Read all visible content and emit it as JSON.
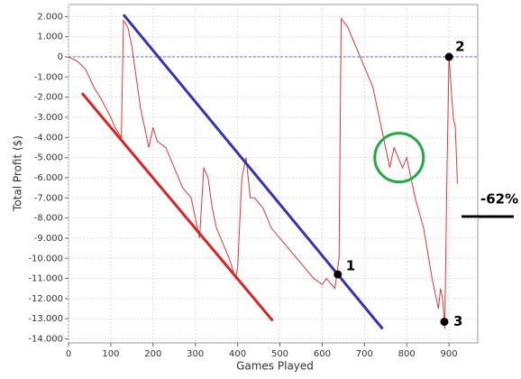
{
  "chart_data": {
    "type": "line",
    "x_label": "Games Played",
    "y_label": "Total Profit ($)",
    "xlim": [
      0,
      968
    ],
    "ylim": [
      -14200,
      2600
    ],
    "xticks": [
      0,
      100,
      200,
      300,
      400,
      500,
      600,
      700,
      800,
      900
    ],
    "yticks": [
      {
        "value": 2000,
        "label": "2.000"
      },
      {
        "value": 1000,
        "label": "1.000"
      },
      0,
      {
        "value": -1000,
        "label": "-1.000"
      },
      {
        "value": -2000,
        "label": "-2.000"
      },
      {
        "value": -3000,
        "label": "-3.000"
      },
      {
        "value": -4000,
        "label": "-4.000"
      },
      {
        "value": -5000,
        "label": "-5.000"
      },
      {
        "value": -6000,
        "label": "-6.000"
      },
      {
        "value": -7000,
        "label": "-7.000"
      },
      {
        "value": -8000,
        "label": "-8.000"
      },
      {
        "value": -9000,
        "label": "-9.000"
      },
      {
        "value": -10000,
        "label": "-10.000"
      },
      {
        "value": -11000,
        "label": "-11.000"
      },
      {
        "value": -12000,
        "label": "-12.000"
      },
      {
        "value": -13000,
        "label": "-13.000"
      },
      {
        "value": -14000,
        "label": "-14.000"
      }
    ],
    "grid": true,
    "reference_line": 0,
    "x": [
      0,
      20,
      40,
      60,
      80,
      100,
      110,
      125,
      130,
      140,
      150,
      160,
      170,
      180,
      190,
      200,
      210,
      230,
      250,
      270,
      290,
      300,
      310,
      320,
      330,
      340,
      350,
      360,
      380,
      395,
      400,
      410,
      420,
      430,
      440,
      460,
      480,
      500,
      520,
      540,
      560,
      580,
      600,
      610,
      630,
      640,
      645,
      660,
      680,
      700,
      720,
      730,
      740,
      750,
      760,
      770,
      780,
      790,
      800,
      810,
      820,
      840,
      860,
      875,
      880,
      885,
      890,
      895,
      900,
      905,
      910,
      915,
      920
    ],
    "series": [
      {
        "color": "#ee3333",
        "values": [
          0,
          -200,
          -600,
          -1500,
          -2200,
          -3000,
          -3500,
          -4000,
          1800,
          1500,
          500,
          -1000,
          -2500,
          -3500,
          -4500,
          -3500,
          -4200,
          -4500,
          -5500,
          -6500,
          -7000,
          -8000,
          -9000,
          -5500,
          -6000,
          -7500,
          -8500,
          -9000,
          -10000,
          -11000,
          -10500,
          -6000,
          -5000,
          -7000,
          -7000,
          -7500,
          -8500,
          -9000,
          -9500,
          -10000,
          -10500,
          -11000,
          -11300,
          -11000,
          -11500,
          -10000,
          1900,
          1500,
          500,
          -500,
          -1500,
          -2500,
          -3500,
          -4500,
          -5500,
          -4500,
          -5000,
          -5500,
          -5000,
          -6000,
          -7000,
          -8500,
          -11000,
          -12500,
          -11500,
          -12000,
          -13500,
          -6000,
          0,
          -1500,
          -3000,
          -3500,
          -6300
        ]
      }
    ],
    "lines": [
      {
        "color": "#3333bb",
        "x": [
          130,
          743
        ],
        "y": [
          2100,
          -13500
        ]
      },
      {
        "color": "#dd2222",
        "x": [
          32,
          483
        ],
        "y": [
          -1800,
          -13100
        ]
      }
    ],
    "circle": {
      "color": "#22aa44",
      "x": 782,
      "y": -5000
    },
    "points": [
      {
        "label": "1",
        "x": 637,
        "y": -10800
      },
      {
        "label": "2",
        "x": 900,
        "y": 0
      },
      {
        "label": "3",
        "x": 889,
        "y": -13150
      }
    ],
    "side_note": "-62%"
  }
}
